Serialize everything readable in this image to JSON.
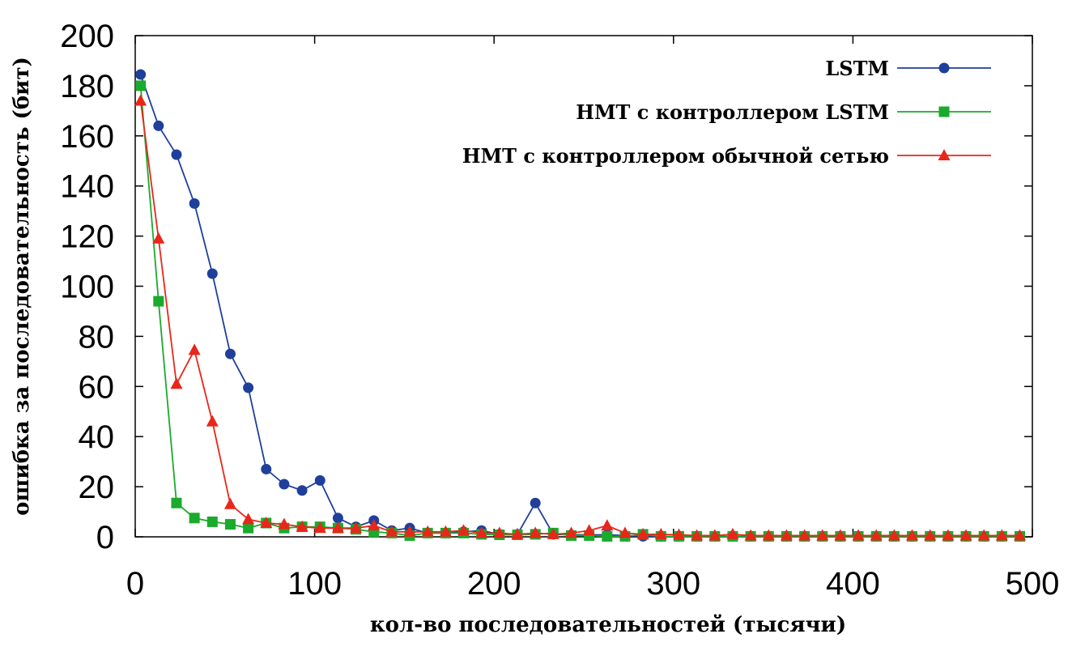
{
  "chart_data": {
    "type": "line",
    "xlabel": "кол-во последовательностей (тысячи)",
    "ylabel": "ошибка за последовательность (бит)",
    "xlim": [
      0,
      500
    ],
    "ylim": [
      0,
      200
    ],
    "xticks": [
      0,
      100,
      200,
      300,
      400,
      500
    ],
    "yticks": [
      0,
      20,
      40,
      60,
      80,
      100,
      120,
      140,
      160,
      180,
      200
    ],
    "grid": false,
    "legend_position": "top-right",
    "x": [
      3,
      13,
      23,
      33,
      43,
      53,
      63,
      73,
      83,
      93,
      103,
      113,
      123,
      133,
      143,
      153,
      163,
      173,
      183,
      193,
      203,
      213,
      223,
      233,
      243,
      253,
      263,
      273,
      283,
      293,
      303,
      313,
      323,
      333,
      343,
      353,
      363,
      373,
      383,
      393,
      403,
      413,
      423,
      433,
      443,
      453,
      463,
      473,
      483,
      493
    ],
    "series": [
      {
        "name": "LSTM",
        "color": "#1f3f9a",
        "marker": "circle",
        "values": [
          184.5,
          164,
          152.5,
          133,
          105,
          73,
          59.5,
          27,
          21,
          18.5,
          22.5,
          7.5,
          4,
          6.5,
          2.5,
          3.5,
          1.5,
          1.5,
          2,
          2.5,
          1,
          1,
          13.5,
          1,
          0.8,
          0.8,
          0.8,
          0.5,
          0.2,
          0.2,
          0.2,
          0.2,
          0.2,
          0.2,
          0.2,
          0.2,
          0.2,
          0.2,
          0.2,
          0.2,
          0.2,
          0.2,
          0.2,
          0.2,
          0.2,
          0.2,
          0.2,
          0.2,
          0.2,
          0.2
        ]
      },
      {
        "name": "НМТ с контроллером LSTM",
        "color": "#1aaa2c",
        "marker": "square",
        "values": [
          180,
          94,
          13.5,
          7.5,
          6,
          5,
          3.5,
          5.5,
          3.5,
          4,
          4,
          3.5,
          3,
          2,
          1.5,
          0.5,
          1.5,
          1.5,
          1.5,
          1,
          0.8,
          0.8,
          1,
          1.5,
          0.5,
          0.5,
          0.2,
          0.2,
          1,
          0.2,
          0.2,
          0.2,
          0.2,
          0.2,
          0.2,
          0.2,
          0.2,
          0.2,
          0.2,
          0.2,
          0.2,
          0.2,
          0.2,
          0.2,
          0.2,
          0.2,
          0.2,
          0.2,
          0.2,
          0.2
        ]
      },
      {
        "name": "НМТ с контроллером обычной сетью",
        "color": "#e8261a",
        "marker": "triangle",
        "values": [
          174,
          119,
          61,
          74.5,
          46,
          13,
          7,
          5.5,
          5,
          4,
          3.5,
          3.5,
          3.5,
          4.5,
          2,
          2,
          2,
          2,
          2.5,
          1.5,
          1.5,
          1,
          1.5,
          1,
          1.5,
          2.5,
          4.5,
          1.5,
          1,
          1,
          0.8,
          0.5,
          0.5,
          1,
          0.5,
          0.5,
          0.5,
          0.5,
          0.5,
          0.5,
          0.5,
          0.5,
          0.5,
          0.5,
          0.5,
          0.5,
          0.5,
          0.5,
          0.5,
          0.5
        ]
      }
    ]
  }
}
